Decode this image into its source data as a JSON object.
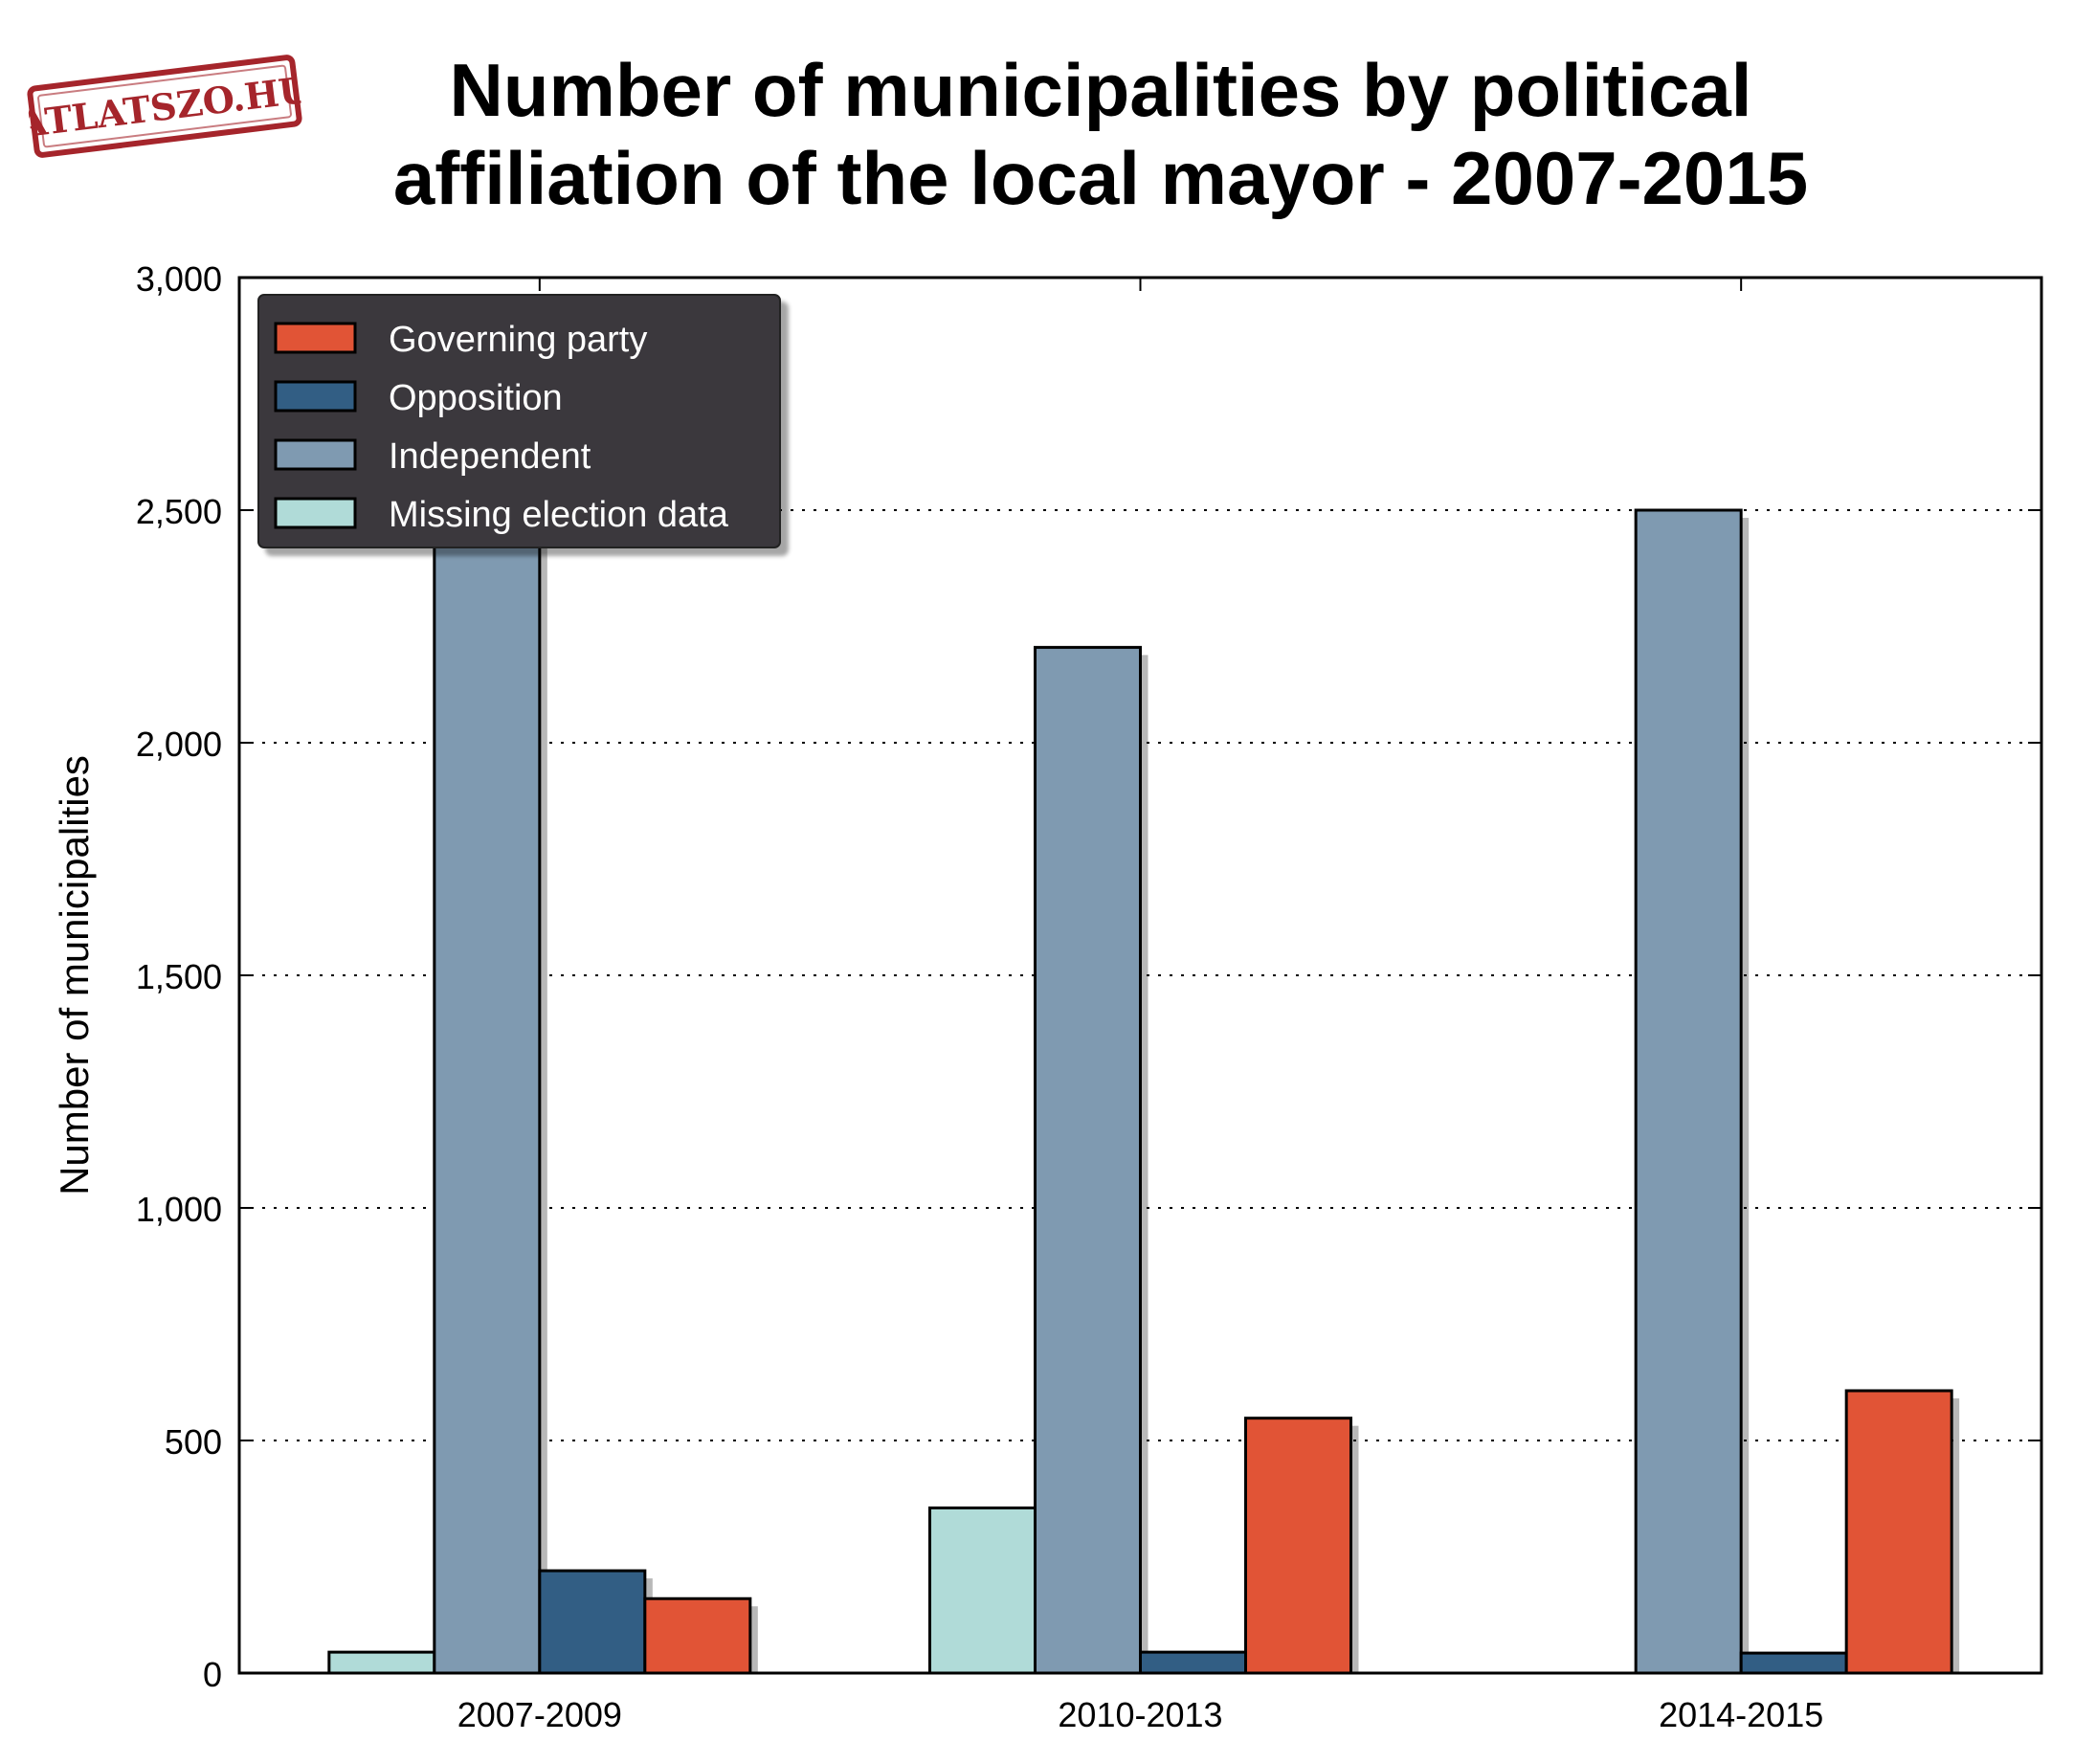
{
  "logo": {
    "text": "ATLATSZO.HU"
  },
  "chart_data": {
    "type": "bar",
    "title": "Number of municipalities by political affiliation of the local mayor - 2007-2015",
    "xlabel": "",
    "ylabel": "Number of municipalities",
    "ylim": [
      0,
      3000
    ],
    "yticks": [
      0,
      500,
      1000,
      1500,
      2000,
      2500,
      3000
    ],
    "ytick_labels": [
      "0",
      "500",
      "1,000",
      "1,500",
      "2,000",
      "2,500",
      "3,000"
    ],
    "grid": "horizontal dotted",
    "legend_position": "top-left",
    "categories": [
      "2007-2009",
      "2010-2013",
      "2014-2015"
    ],
    "series": [
      {
        "name": "Missing election data",
        "color": "#b0dbd8",
        "values": [
          45,
          355,
          0
        ]
      },
      {
        "name": "Independent",
        "color": "#7f9ab1",
        "values": [
          2790,
          2205,
          2500
        ]
      },
      {
        "name": "Opposition",
        "color": "#325e84",
        "values": [
          220,
          45,
          43
        ]
      },
      {
        "name": "Governing party",
        "color": "#e15436",
        "values": [
          160,
          548,
          607
        ]
      }
    ],
    "legend_order": [
      "Governing party",
      "Opposition",
      "Independent",
      "Missing election data"
    ]
  }
}
